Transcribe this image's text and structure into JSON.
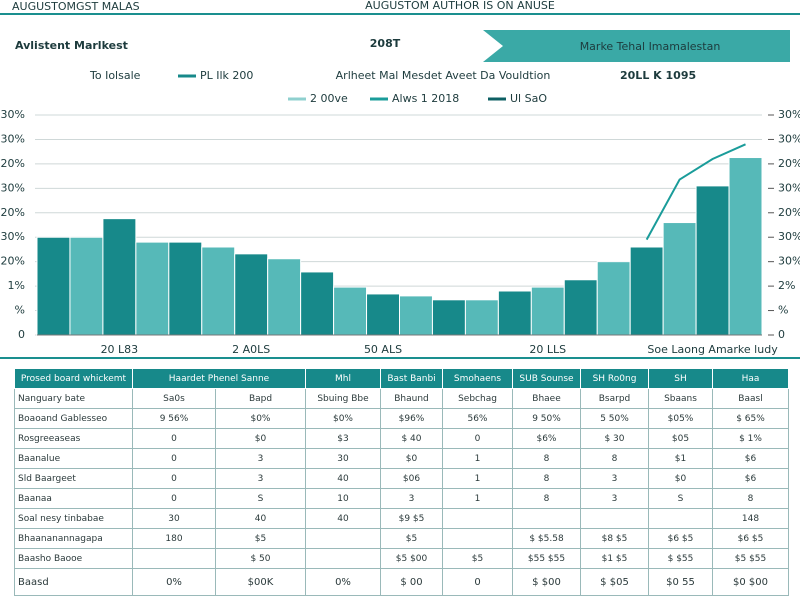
{
  "header": {
    "top_left": "AUGUSTOMGST MALAS",
    "top_center": "AUGUSTOM AUTHOR IS ON ANUSE",
    "title": "Avlistent Marlkest",
    "big_number": "208T",
    "banner": "Marke Tehal Imamalestan"
  },
  "chart_data": {
    "type": "bar",
    "subtitle_left": "To Iolsale",
    "subtitle": "Arlheet Mal Mesdet Aveet Da Vouldtion",
    "note": "20LL K 1095",
    "categories": [
      null,
      null,
      "20 L83",
      null,
      null,
      null,
      "2 A0LS",
      null,
      null,
      null,
      "50 ALS",
      null,
      null,
      null,
      null,
      "20 LLS",
      null,
      null,
      null,
      null,
      "Soe Laong Amarke ludy",
      null
    ],
    "series": [
      {
        "name": "PL Ilk 200",
        "color": "#17898a",
        "alt_color": "#56b9b8",
        "values": [
          20,
          20,
          23.8,
          19,
          19,
          18,
          16.6,
          15.6,
          12.9,
          9.8,
          8.4,
          8,
          7.2,
          7.2,
          9,
          9.8,
          11.3,
          15,
          18,
          23,
          30.5,
          36.3
        ]
      },
      {
        "name": "Alws 1 2018",
        "color": "#1a9c9a",
        "axis": "y2",
        "values": [
          null,
          null,
          null,
          null,
          null,
          null,
          null,
          null,
          null,
          null,
          null,
          null,
          null,
          null,
          null,
          null,
          null,
          null,
          19.5,
          31.8,
          36,
          39
        ]
      }
    ],
    "legend_extra": [
      {
        "name": "2 00ve",
        "color": "#8fd0cf"
      },
      {
        "name": "Ul SaO",
        "color": "#0d5f63"
      }
    ],
    "ylim": [
      0,
      45
    ],
    "yticks": [
      0,
      {
        "value": 5,
        "label": "%"
      },
      {
        "value": 10,
        "label": "1%"
      },
      {
        "value": 15,
        "label": "20%"
      },
      {
        "value": 20,
        "label": "30%"
      },
      {
        "value": 25,
        "label": "20%"
      },
      {
        "value": 30,
        "label": "30%"
      },
      {
        "value": 35,
        "label": "20%"
      },
      {
        "value": 40,
        "label": "30%"
      },
      {
        "value": 45,
        "label": "30%"
      }
    ],
    "y2lim": [
      0,
      45
    ],
    "y2ticks": [
      0,
      {
        "value": 5,
        "label": "%"
      },
      {
        "value": 10,
        "label": "2%"
      },
      {
        "value": 15,
        "label": "30%"
      },
      {
        "value": 20,
        "label": "30%"
      },
      {
        "value": 25,
        "label": "20%"
      },
      {
        "value": 30,
        "label": "30%"
      },
      {
        "value": 35,
        "label": "20%"
      },
      {
        "value": 40,
        "label": "30%"
      },
      {
        "value": 45,
        "label": "30%"
      }
    ],
    "grid": true
  },
  "table": {
    "header": [
      "Prosed board whickemt",
      "Haardet Phenel Sanne",
      "Mhl",
      "Bast Banbi",
      "Smohaens",
      "SUB Sounse",
      "SH Ro0ng",
      "SH",
      "Haa"
    ],
    "rows": [
      [
        "Nanguary bate",
        "Sa0s",
        "Bapd",
        "Sbuing Bbe",
        "Bhaund",
        "Sebchag",
        "Bhaee",
        "Bsarpd",
        "Sbaans",
        "Baasl"
      ],
      [
        "Boaoand Gablesseo",
        "9 56%",
        "$0%",
        "$0%",
        "$96%",
        "56%",
        "9 50%",
        "5 50%",
        "$05%",
        "$ 65%"
      ],
      [
        "Rosgreeaseas",
        "0",
        "$0",
        "$3",
        "$ 40",
        "0",
        "$6%",
        "$ 30",
        "$05",
        "$ 1%"
      ],
      [
        "Baanalue",
        "0",
        "3",
        "30",
        "$0",
        "1",
        "8",
        "8",
        "$1",
        "$6"
      ],
      [
        "Sld Baargeet",
        "0",
        "3",
        "40",
        "$06",
        "1",
        "8",
        "3",
        "$0",
        "$6"
      ],
      [
        "Baanaa",
        "0",
        "S",
        "10",
        "3",
        "1",
        "8",
        "3",
        "S",
        "8"
      ],
      [
        "Soal nesy tinbabae",
        "30",
        "40",
        "40",
        "$9 $5",
        null,
        null,
        null,
        null,
        "148"
      ],
      [
        "Bhaananannagapa",
        "180",
        "$5",
        null,
        "$5",
        null,
        "$ $5.58",
        "$8 $5",
        "$6 $5",
        "$6 $5"
      ],
      [
        "Baasho Baooe",
        null,
        "$ 50",
        null,
        "$5 $00",
        "$5",
        "$55 $55",
        "$1 $5",
        "$ $55",
        "$5 $55"
      ],
      [
        "Baasd",
        "0%",
        "$00K",
        "0%",
        "$ 00",
        "0",
        "$ $00",
        "$ $05",
        "$0 55",
        "$0 $00"
      ]
    ]
  }
}
